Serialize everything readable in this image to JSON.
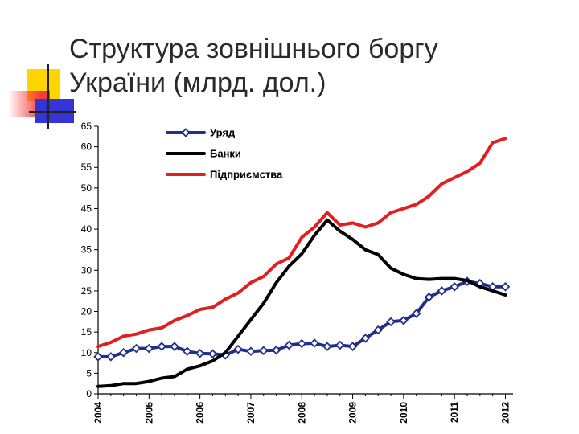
{
  "slide": {
    "title_line1": "Структура зовнішнього боргу",
    "title_line2": "України (млрд. дол.)"
  },
  "chart_data": {
    "type": "line",
    "title": "",
    "xlabel": "",
    "ylabel": "",
    "ylim": [
      0,
      65
    ],
    "y_ticks": [
      0,
      5,
      10,
      15,
      20,
      25,
      30,
      35,
      40,
      45,
      50,
      55,
      60,
      65
    ],
    "x_ticks": [
      "2004",
      "2005",
      "2006",
      "2007",
      "2008",
      "2009",
      "2010",
      "2011",
      "2012"
    ],
    "x": [
      2004.0,
      2004.25,
      2004.5,
      2004.75,
      2005.0,
      2005.25,
      2005.5,
      2005.75,
      2006.0,
      2006.25,
      2006.5,
      2006.75,
      2007.0,
      2007.25,
      2007.5,
      2007.75,
      2008.0,
      2008.25,
      2008.5,
      2008.75,
      2009.0,
      2009.25,
      2009.5,
      2009.75,
      2010.0,
      2010.25,
      2010.5,
      2010.75,
      2011.0,
      2011.25,
      2011.5,
      2011.75,
      2012.0
    ],
    "series": [
      {
        "name": "Уряд",
        "color": "#1f2f8a",
        "marker": "diamond",
        "values": [
          9.0,
          9.0,
          10.0,
          11.0,
          11.0,
          11.5,
          11.5,
          10.3,
          9.8,
          9.7,
          9.4,
          10.8,
          10.3,
          10.5,
          10.6,
          11.8,
          12.2,
          12.3,
          11.5,
          11.8,
          11.5,
          13.5,
          15.5,
          17.5,
          17.8,
          19.5,
          23.5,
          25.0,
          26.0,
          27.3,
          26.8,
          26.0,
          26.0
        ]
      },
      {
        "name": "Банки",
        "color": "#000000",
        "marker": "none",
        "values": [
          1.8,
          2.0,
          2.5,
          2.5,
          3.0,
          3.8,
          4.2,
          6.0,
          6.8,
          8.0,
          10.0,
          14.0,
          18.0,
          22.0,
          27.0,
          31.0,
          34.0,
          38.5,
          42.2,
          39.5,
          37.5,
          35.0,
          33.8,
          30.5,
          29.0,
          28.0,
          27.8,
          28.0,
          28.0,
          27.5,
          26.0,
          25.0,
          24.0
        ]
      },
      {
        "name": "Підприємства",
        "color": "#e31e1e",
        "marker": "none",
        "values": [
          11.5,
          12.5,
          14.0,
          14.5,
          15.5,
          16.0,
          17.8,
          19.0,
          20.5,
          21.0,
          23.0,
          24.5,
          27.0,
          28.5,
          31.5,
          33.0,
          38.0,
          40.5,
          44.0,
          41.0,
          41.5,
          40.5,
          41.5,
          44.0,
          45.0,
          46.0,
          48.0,
          51.0,
          52.5,
          54.0,
          56.0,
          61.0,
          62.0
        ]
      }
    ],
    "legend_position": "top-left",
    "grid": false
  }
}
